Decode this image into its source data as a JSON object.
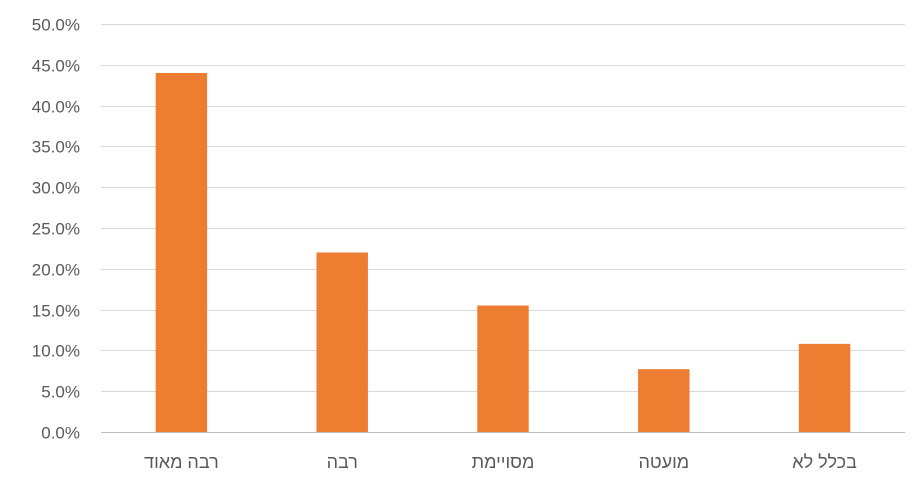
{
  "chart_data": {
    "type": "bar",
    "title": "",
    "xlabel": "",
    "ylabel": "",
    "categories": [
      "רבה מאוד",
      "רבה",
      "מסויימת",
      "מועטה",
      "בכלל לא"
    ],
    "values": [
      0.44,
      0.22,
      0.155,
      0.077,
      0.108
    ],
    "ylim": [
      0,
      0.5
    ],
    "y_ticks": [
      0,
      0.05,
      0.1,
      0.15,
      0.2,
      0.25,
      0.3,
      0.35,
      0.4,
      0.45,
      0.5
    ],
    "y_tick_labels": [
      "0.0%",
      "5.0%",
      "10.0%",
      "15.0%",
      "20.0%",
      "25.0%",
      "30.0%",
      "35.0%",
      "40.0%",
      "45.0%",
      "50.0%"
    ],
    "grid": true,
    "legend": "none",
    "bar_color": "#ED7D31"
  }
}
